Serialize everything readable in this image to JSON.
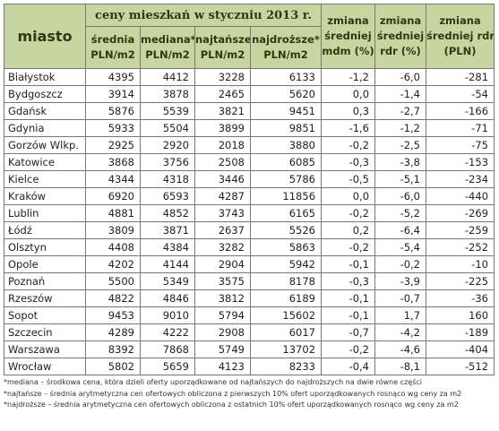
{
  "table": {
    "top_header": "ceny mieszkań w styczniu 2013 r.",
    "col_city": "miasto",
    "sub_headers": [
      {
        "l1": "średnia",
        "l2": "PLN/m2"
      },
      {
        "l1": "mediana*",
        "l2": "PLN/m2"
      },
      {
        "l1": "najtańsze*",
        "l2": "PLN/m2"
      },
      {
        "l1": "najdroższe*",
        "l2": "PLN/m2"
      }
    ],
    "change_headers": [
      {
        "l1": "zmiana",
        "l2": "średniej",
        "l3": "mdm (%)"
      },
      {
        "l1": "zmiana",
        "l2": "średniej",
        "l3": "rdr (%)"
      },
      {
        "l1": "zmiana",
        "l2": "średniej rdr",
        "l3": "(PLN)"
      }
    ],
    "rows": [
      [
        "Białystok",
        "4395",
        "4412",
        "3228",
        "6133",
        "-1,2",
        "-6,0",
        "-281"
      ],
      [
        "Bydgoszcz",
        "3914",
        "3878",
        "2465",
        "5620",
        "0,0",
        "-1,4",
        "-54"
      ],
      [
        "Gdańsk",
        "5876",
        "5539",
        "3821",
        "9451",
        "0,3",
        "-2,7",
        "-166"
      ],
      [
        "Gdynia",
        "5933",
        "5504",
        "3899",
        "9851",
        "-1,6",
        "-1,2",
        "-71"
      ],
      [
        "Gorzów Wlkp.",
        "2925",
        "2920",
        "2018",
        "3880",
        "-0,2",
        "-2,5",
        "-75"
      ],
      [
        "Katowice",
        "3868",
        "3756",
        "2508",
        "6085",
        "-0,3",
        "-3,8",
        "-153"
      ],
      [
        "Kielce",
        "4344",
        "4318",
        "3446",
        "5786",
        "-0,5",
        "-5,1",
        "-234"
      ],
      [
        "Kraków",
        "6920",
        "6593",
        "4287",
        "11856",
        "0,0",
        "-6,0",
        "-440"
      ],
      [
        "Lublin",
        "4881",
        "4852",
        "3743",
        "6165",
        "-0,2",
        "-5,2",
        "-269"
      ],
      [
        "Łódź",
        "3809",
        "3871",
        "2637",
        "5526",
        "0,2",
        "-6,4",
        "-259"
      ],
      [
        "Olsztyn",
        "4408",
        "4384",
        "3282",
        "5863",
        "-0,2",
        "-5,4",
        "-252"
      ],
      [
        "Opole",
        "4202",
        "4144",
        "2904",
        "5942",
        "-0,1",
        "-0,2",
        "-10"
      ],
      [
        "Poznań",
        "5500",
        "5349",
        "3575",
        "8178",
        "-0,3",
        "-3,9",
        "-225"
      ],
      [
        "Rzeszów",
        "4822",
        "4846",
        "3812",
        "6189",
        "-0,1",
        "-0,7",
        "-36"
      ],
      [
        "Sopot",
        "9453",
        "9010",
        "5794",
        "15602",
        "-0,1",
        "1,7",
        "160"
      ],
      [
        "Szczecin",
        "4289",
        "4222",
        "2908",
        "6017",
        "-0,7",
        "-4,2",
        "-189"
      ],
      [
        "Warszawa",
        "8392",
        "7868",
        "5749",
        "13702",
        "-0,2",
        "-4,6",
        "-404"
      ],
      [
        "Wrocław",
        "5802",
        "5659",
        "4123",
        "8233",
        "-0,4",
        "-8,1",
        "-512"
      ]
    ]
  },
  "notes": [
    "*mediana – środkowa cena, która dzieli oferty uporządkowane od najtańszych do najdroższych na dwie równe części",
    "*najtańsze – średnia arytmetyczna cen ofertowych obliczona z pierwszych 10% ofert uporządkowanych rosnąco wg ceny za m2",
    "*najdroższe – średnia arytmetyczna cen ofertowych obliczona z ostatnich 10% ofert uporządkowanych rosnąco wg ceny za m2"
  ]
}
